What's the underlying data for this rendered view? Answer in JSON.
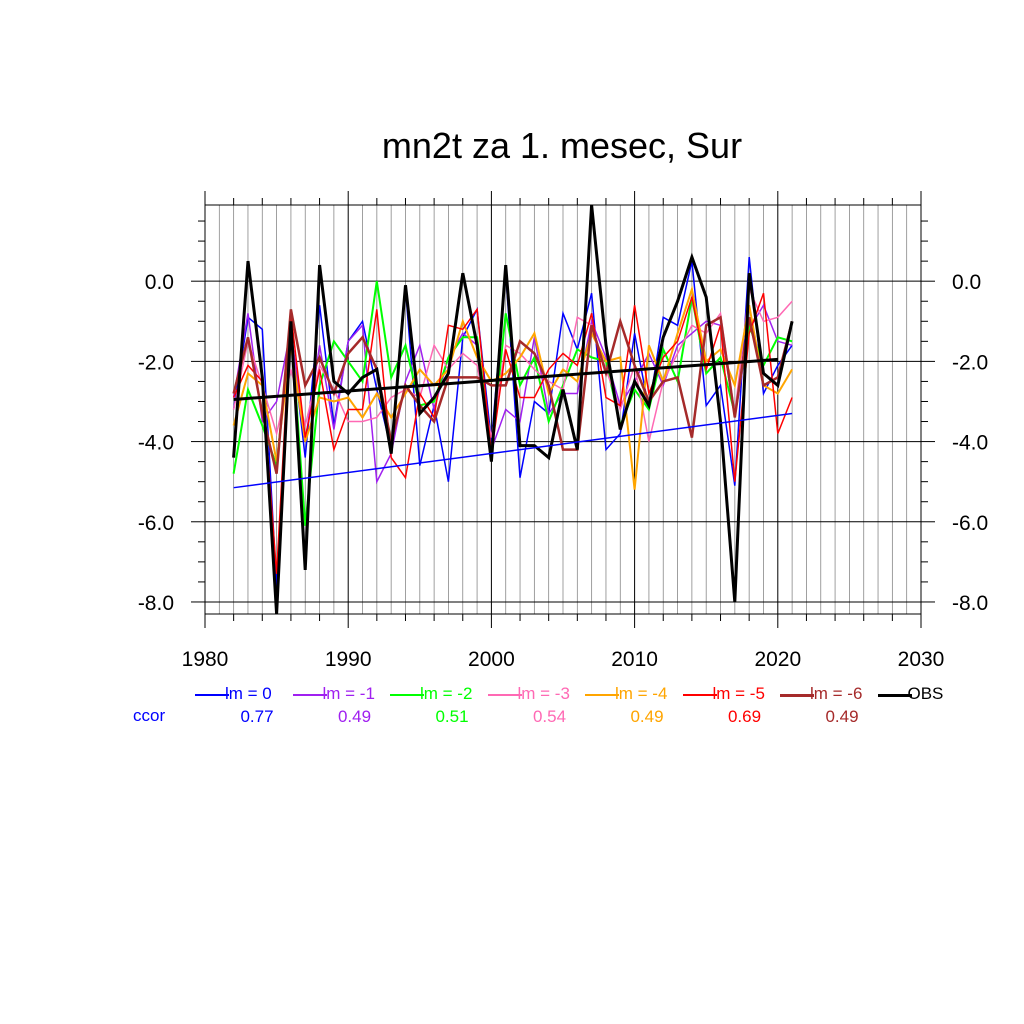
{
  "chart_data": {
    "type": "line",
    "title": "mn2t za 1. mesec, Sur",
    "xlim": [
      1980,
      2030
    ],
    "ylim": [
      -8.3,
      1.9
    ],
    "x_ticks": [
      "1980",
      "1990",
      "2000",
      "2010",
      "2020",
      "2030"
    ],
    "y_ticks": [
      "0.0",
      "-2.0",
      "-4.0",
      "-6.0",
      "-8.0"
    ],
    "grid": true,
    "x": [
      1982,
      1983,
      1984,
      1985,
      1986,
      1987,
      1988,
      1989,
      1990,
      1991,
      1992,
      1993,
      1994,
      1995,
      1996,
      1997,
      1998,
      1999,
      2000,
      2001,
      2002,
      2003,
      2004,
      2005,
      2006,
      2007,
      2008,
      2009,
      2010,
      2011,
      2012,
      2013,
      2014,
      2015,
      2016,
      2017,
      2018,
      2019,
      2020,
      2021
    ],
    "series": [
      {
        "name": "lm = 0",
        "color": "#0000ff",
        "width": 1.5,
        "values": [
          -3.2,
          -0.9,
          -1.2,
          -7.6,
          -1.3,
          -4.4,
          -0.6,
          -3.6,
          -1.5,
          -1.0,
          -2.7,
          -4.2,
          -0.2,
          -4.6,
          -3.1,
          -5.0,
          -1.4,
          -0.7,
          -4.0,
          0.2,
          -4.9,
          -3.0,
          -3.3,
          -0.8,
          -1.7,
          -0.3,
          -4.2,
          -3.8,
          -1.3,
          -3.2,
          -0.9,
          -1.1,
          0.5,
          -3.1,
          -2.6,
          -5.1,
          0.6,
          -2.8,
          -2.1,
          -1.6
        ]
      },
      {
        "name": "lm = -1",
        "color": "#a020f0",
        "width": 1.5,
        "values": [
          -2.9,
          -0.8,
          -3.5,
          -3.0,
          -1.2,
          -4.0,
          -1.6,
          -3.7,
          -1.5,
          -1.1,
          -5.0,
          -4.3,
          -2.5,
          -1.6,
          -3.2,
          -1.9,
          -1.3,
          -1.6,
          -4.2,
          -3.2,
          -3.5,
          -1.4,
          -3.3,
          -2.8,
          -2.8,
          -1.0,
          -1.9,
          -3.1,
          -2.5,
          -1.8,
          -2.6,
          -1.6,
          -1.3,
          -1.0,
          -1.1,
          -3.4,
          -1.2,
          -0.6,
          -1.5,
          -1.6
        ]
      },
      {
        "name": "lm = -2",
        "color": "#00ff00",
        "width": 2,
        "values": [
          -4.8,
          -2.7,
          -3.6,
          -4.6,
          -1.1,
          -6.1,
          -2.6,
          -1.5,
          -2.0,
          -2.5,
          0.0,
          -2.4,
          -1.6,
          -3.1,
          -3.0,
          -1.9,
          -1.4,
          -1.4,
          -4.3,
          -0.8,
          -2.6,
          -1.9,
          -3.5,
          -2.6,
          -1.7,
          -1.9,
          -2.0,
          -3.6,
          -2.7,
          -3.2,
          -1.7,
          -2.5,
          -0.4,
          -2.3,
          -1.9,
          -3.3,
          -1.1,
          -2.1,
          -1.4,
          -1.5
        ]
      },
      {
        "name": "lm = -3",
        "color": "#ff69b4",
        "width": 1.5,
        "values": [
          -3.2,
          -1.5,
          -2.6,
          -3.8,
          -2.2,
          -3.6,
          -2.1,
          -2.7,
          -3.5,
          -3.5,
          -3.4,
          -2.9,
          -2.7,
          -2.9,
          -1.6,
          -2.2,
          -1.8,
          -2.1,
          -3.9,
          -1.6,
          -1.8,
          -2.2,
          -2.5,
          -2.7,
          -0.9,
          -1.1,
          -2.2,
          -3.2,
          -2.1,
          -4.0,
          -2.5,
          -1.8,
          -1.1,
          -1.3,
          -0.8,
          -3.3,
          -0.2,
          -1.0,
          -0.9,
          -0.5
        ]
      },
      {
        "name": "lm = -4",
        "color": "#ffa500",
        "width": 2,
        "values": [
          -3.6,
          -2.3,
          -2.6,
          -4.5,
          -1.6,
          -4.0,
          -2.9,
          -3.0,
          -2.9,
          -3.4,
          -2.8,
          -3.4,
          -2.8,
          -2.2,
          -2.6,
          -2.2,
          -1.0,
          -1.9,
          -2.5,
          -2.3,
          -1.9,
          -1.3,
          -2.8,
          -2.2,
          -2.5,
          -1.3,
          -2.0,
          -1.9,
          -5.2,
          -1.6,
          -2.5,
          -1.3,
          -0.2,
          -2.0,
          -1.7,
          -2.6,
          -0.6,
          -2.6,
          -2.8,
          -2.2
        ]
      },
      {
        "name": "lm = -5",
        "color": "#ff0000",
        "width": 1.5,
        "values": [
          -2.9,
          -2.1,
          -2.5,
          -7.3,
          -0.8,
          -3.9,
          -2.2,
          -4.2,
          -3.2,
          -3.2,
          -0.7,
          -4.4,
          -4.9,
          -2.8,
          -3.4,
          -1.1,
          -1.2,
          -0.7,
          -4.3,
          -1.7,
          -2.9,
          -2.9,
          -2.2,
          -1.8,
          -2.1,
          -0.8,
          -2.9,
          -3.1,
          -0.6,
          -2.8,
          -1.9,
          -1.5,
          -0.4,
          -2.2,
          -1.1,
          -5.0,
          -1.3,
          -0.3,
          -3.8,
          -2.9
        ]
      },
      {
        "name": "lm = -6",
        "color": "#a52a2a",
        "width": 2.5,
        "values": [
          -2.8,
          -1.4,
          -3.3,
          -4.8,
          -0.7,
          -2.6,
          -1.9,
          -2.8,
          -1.8,
          -1.4,
          -2.2,
          -4.0,
          -2.6,
          -3.1,
          -3.5,
          -2.4,
          -2.4,
          -2.4,
          -2.6,
          -2.6,
          -1.5,
          -1.8,
          -2.6,
          -4.2,
          -4.2,
          -1.1,
          -2.3,
          -1.0,
          -2.1,
          -3.0,
          -2.5,
          -2.4,
          -3.9,
          -1.1,
          -0.9,
          -3.4,
          -0.9,
          -2.6,
          -2.4,
          -1.0
        ]
      },
      {
        "name": "OBS",
        "color": "#000000",
        "width": 3,
        "values": [
          -4.4,
          0.5,
          -2.4,
          -8.3,
          -1.0,
          -7.2,
          0.4,
          -2.5,
          -2.8,
          -2.4,
          -2.2,
          -4.3,
          -0.1,
          -3.3,
          -2.9,
          -2.3,
          0.2,
          -1.6,
          -4.5,
          0.4,
          -4.1,
          -4.1,
          -4.4,
          -2.7,
          -4.2,
          1.9,
          -1.6,
          -3.7,
          -2.5,
          -3.1,
          -1.4,
          -0.5,
          0.6,
          -0.4,
          -3.5,
          -8.0,
          0.2,
          -2.3,
          -2.6,
          -1.0
        ]
      }
    ],
    "trend_lines": [
      {
        "name": "lm = 0",
        "color": "#0000ff",
        "width": 1.5,
        "x": [
          1982,
          2021
        ],
        "y": [
          -5.15,
          -3.3
        ]
      },
      {
        "name": "OBS",
        "color": "#000000",
        "width": 3,
        "x": [
          1982,
          2020
        ],
        "y": [
          -2.95,
          -1.95
        ]
      }
    ],
    "legend_placement": "bottom",
    "ccor_label": "ccor",
    "ccor_values": [
      "0.77",
      "0.49",
      "0.51",
      "0.54",
      "0.49",
      "0.69",
      "0.49"
    ]
  }
}
